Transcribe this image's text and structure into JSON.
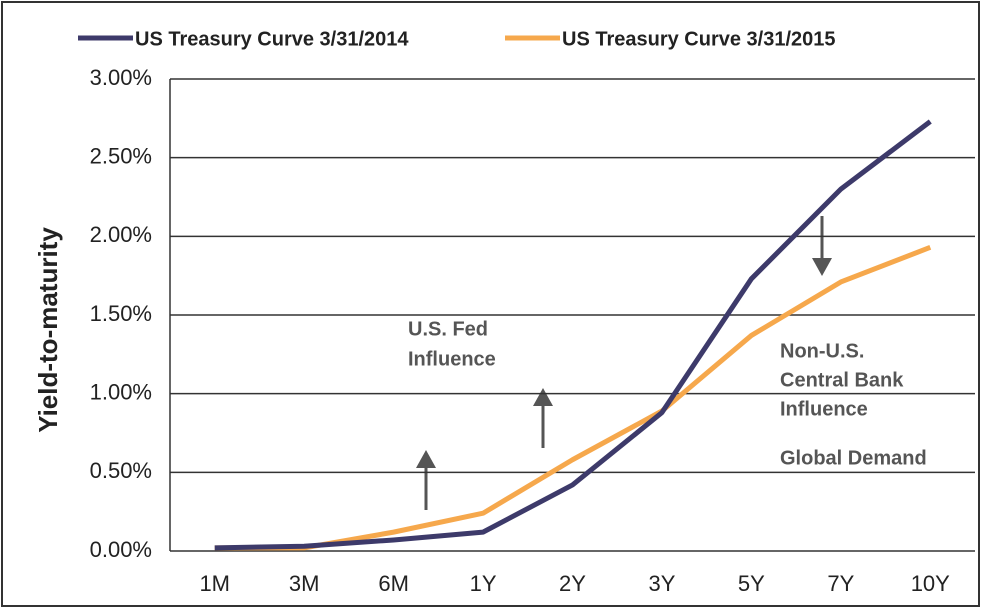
{
  "chart_data": {
    "type": "line",
    "y_label": "Yield-to-maturity",
    "categories": [
      "1M",
      "3M",
      "6M",
      "1Y",
      "2Y",
      "3Y",
      "5Y",
      "7Y",
      "10Y"
    ],
    "series": [
      {
        "name": "US Treasury Curve 3/31/2014",
        "color": "#3d3a6a",
        "values": [
          0.02,
          0.03,
          0.07,
          0.12,
          0.42,
          0.88,
          1.73,
          2.3,
          2.73
        ]
      },
      {
        "name": "US Treasury Curve 3/31/2015",
        "color": "#f6a84c",
        "values": [
          0.02,
          0.02,
          0.12,
          0.24,
          0.58,
          0.89,
          1.37,
          1.71,
          1.93
        ]
      }
    ],
    "ylim": [
      0,
      3
    ],
    "yticks": [
      {
        "value": 0,
        "label": "0.00%"
      },
      {
        "value": 0.5,
        "label": "0.50%"
      },
      {
        "value": 1,
        "label": "1.00%"
      },
      {
        "value": 1.5,
        "label": "1.50%"
      },
      {
        "value": 2,
        "label": "2.00%"
      },
      {
        "value": 2.5,
        "label": "2.50%"
      },
      {
        "value": 3,
        "label": "3.00%"
      }
    ],
    "grid": true,
    "annotations": [
      {
        "lines": [
          "U.S. Fed",
          "Influence"
        ]
      },
      {
        "lines": [
          "Non-U.S.",
          "Central Bank",
          "Influence"
        ]
      },
      {
        "lines": [
          "Global Demand"
        ]
      }
    ]
  }
}
